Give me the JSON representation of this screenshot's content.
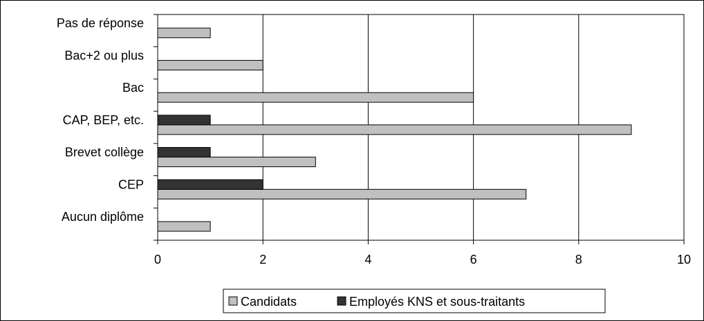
{
  "chart_data": {
    "type": "bar",
    "orientation": "horizontal",
    "categories": [
      "Aucun diplôme",
      "CEP",
      "Brevet collège",
      "CAP, BEP, etc.",
      "Bac",
      "Bac+2 ou plus",
      "Pas de réponse"
    ],
    "series": [
      {
        "name": "Candidats",
        "values": [
          1,
          7,
          3,
          9,
          6,
          2,
          1
        ],
        "color": "#c0c0c0"
      },
      {
        "name": "Employés KNS et sous-traitants",
        "values": [
          0,
          2,
          1,
          1,
          0,
          0,
          0
        ],
        "color": "#333333"
      }
    ],
    "xlim": [
      0,
      10
    ],
    "xticks": [
      0,
      2,
      4,
      6,
      8,
      10
    ],
    "grid": "vertical",
    "legend_position": "bottom",
    "title": "",
    "xlabel": "",
    "ylabel": ""
  }
}
